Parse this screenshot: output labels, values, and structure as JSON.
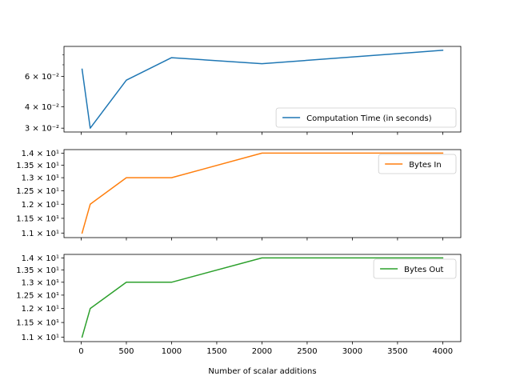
{
  "chart_data": [
    {
      "type": "line",
      "scale": "log",
      "x": [
        10,
        100,
        500,
        1000,
        2000,
        4000
      ],
      "series": [
        {
          "name": "Computation Time (in seconds)",
          "color": "#1f77b4",
          "values": [
            0.066,
            0.03,
            0.057,
            0.077,
            0.071,
            0.085
          ]
        }
      ],
      "ylim": [
        0.0285,
        0.0895
      ],
      "yticks": [
        {
          "value": 0.03,
          "label": "3 × 10⁻²"
        },
        {
          "value": 0.04,
          "label": "4 × 10⁻²"
        },
        {
          "value": 0.06,
          "label": "6 × 10⁻²"
        }
      ],
      "legend": "lower-right"
    },
    {
      "type": "line",
      "scale": "log",
      "x": [
        10,
        100,
        500,
        1000,
        2000,
        4000
      ],
      "series": [
        {
          "name": "Bytes In",
          "color": "#ff7f0e",
          "values": [
            11,
            12,
            13,
            13,
            14,
            14
          ]
        }
      ],
      "ylim": [
        10.85,
        14.15
      ],
      "yticks": [
        {
          "value": 11,
          "label": "1.1 × 10¹"
        },
        {
          "value": 11.5,
          "label": "1.15 × 10¹"
        },
        {
          "value": 12,
          "label": "1.2 × 10¹"
        },
        {
          "value": 12.5,
          "label": "1.25 × 10¹"
        },
        {
          "value": 13,
          "label": "1.3 × 10¹"
        },
        {
          "value": 13.5,
          "label": "1.35 × 10¹"
        },
        {
          "value": 14,
          "label": "1.4 × 10¹"
        }
      ],
      "legend": "upper-right"
    },
    {
      "type": "line",
      "scale": "log",
      "x": [
        10,
        100,
        500,
        1000,
        2000,
        4000
      ],
      "series": [
        {
          "name": "Bytes Out",
          "color": "#2ca02c",
          "values": [
            11,
            12,
            13,
            13,
            14,
            14
          ]
        }
      ],
      "ylim": [
        10.85,
        14.15
      ],
      "yticks": [
        {
          "value": 11,
          "label": "1.1 × 10¹"
        },
        {
          "value": 11.5,
          "label": "1.15 × 10¹"
        },
        {
          "value": 12,
          "label": "1.2 × 10¹"
        },
        {
          "value": 12.5,
          "label": "1.25 × 10¹"
        },
        {
          "value": 13,
          "label": "1.3 × 10¹"
        },
        {
          "value": 13.5,
          "label": "1.35 × 10¹"
        },
        {
          "value": 14,
          "label": "1.4 × 10¹"
        }
      ],
      "legend": "upper-right",
      "xlabel": "Number of scalar additions"
    }
  ],
  "xaxis": {
    "xlim": [
      -190,
      4200
    ],
    "ticks": [
      {
        "value": 0,
        "label": "0"
      },
      {
        "value": 500,
        "label": "500"
      },
      {
        "value": 1000,
        "label": "1000"
      },
      {
        "value": 1500,
        "label": "1500"
      },
      {
        "value": 2000,
        "label": "2000"
      },
      {
        "value": 2500,
        "label": "2500"
      },
      {
        "value": 3000,
        "label": "3000"
      },
      {
        "value": 3500,
        "label": "3500"
      },
      {
        "value": 4000,
        "label": "4000"
      }
    ]
  }
}
